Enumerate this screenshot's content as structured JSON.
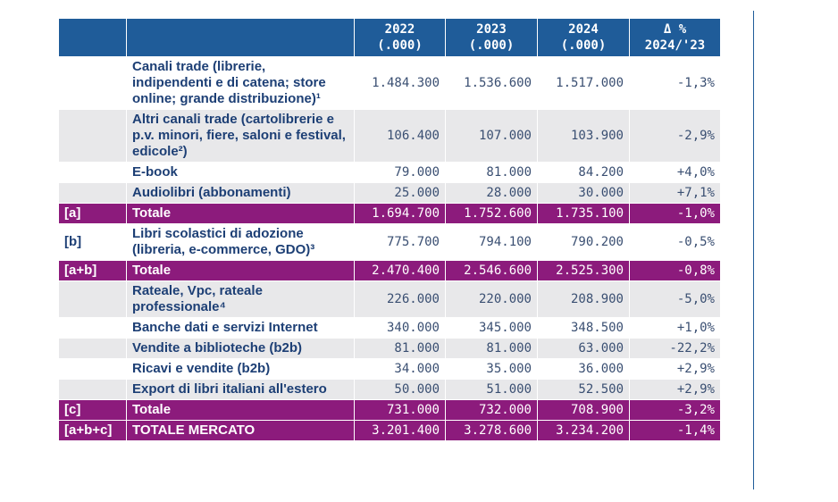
{
  "table": {
    "header": [
      {
        "line1": "2022",
        "line2": "(.000)"
      },
      {
        "line1": "2023",
        "line2": "(.000)"
      },
      {
        "line1": "2024",
        "line2": "(.000)"
      },
      {
        "line1": "Δ %",
        "line2": "2024/'23"
      }
    ],
    "rows": [
      {
        "label": "Canali trade (librerie, indipendenti e di catena; store online; grande distribuzione)¹",
        "values": [
          "1.484.300",
          "1.536.600",
          "1.517.000",
          "-1,3%"
        ],
        "style": "white"
      },
      {
        "label": "Altri canali trade (cartolibrerie e p.v. minori, fiere, saloni e festival, edicole²)",
        "values": [
          "106.400",
          "107.000",
          "103.900",
          "-2,9%"
        ],
        "style": "gray"
      },
      {
        "label": "E-book",
        "values": [
          "79.000",
          "81.000",
          "84.200",
          "+4,0%"
        ],
        "style": "white"
      },
      {
        "label": "Audiolibri (abbonamenti)",
        "values": [
          "25.000",
          "28.000",
          "30.000",
          "+7,1%"
        ],
        "style": "gray"
      },
      {
        "code": "[a]",
        "label": "Totale",
        "values": [
          "1.694.700",
          "1.752.600",
          "1.735.100",
          "-1,0%"
        ],
        "style": "total"
      },
      {
        "code": "[b]",
        "label": "Libri scolastici di adozione (libreria, e-commerce, GDO)³",
        "values": [
          "775.700",
          "794.100",
          "790.200",
          "-0,5%"
        ],
        "style": "white"
      },
      {
        "code": "[a+b]",
        "label": "Totale",
        "values": [
          "2.470.400",
          "2.546.600",
          "2.525.300",
          "-0,8%"
        ],
        "style": "total"
      },
      {
        "label": "Rateale, Vpc, rateale professionale⁴",
        "values": [
          "226.000",
          "220.000",
          "208.900",
          "-5,0%"
        ],
        "style": "gray"
      },
      {
        "label": "Banche dati e servizi Internet",
        "values": [
          "340.000",
          "345.000",
          "348.500",
          "+1,0%"
        ],
        "style": "white"
      },
      {
        "label": "Vendite a biblioteche (b2b)",
        "values": [
          "81.000",
          "81.000",
          "63.000",
          "-22,2%"
        ],
        "style": "gray"
      },
      {
        "label": "Ricavi e vendite (b2b)",
        "values": [
          "34.000",
          "35.000",
          "36.000",
          "+2,9%"
        ],
        "style": "white"
      },
      {
        "label": "Export di libri italiani all'estero",
        "values": [
          "50.000",
          "51.000",
          "52.500",
          "+2,9%"
        ],
        "style": "gray"
      },
      {
        "code": "[c]",
        "label": "Totale",
        "values": [
          "731.000",
          "732.000",
          "708.900",
          "-3,2%"
        ],
        "style": "total"
      },
      {
        "code": "[a+b+c]",
        "label": "TOTALE MERCATO",
        "values": [
          "3.201.400",
          "3.278.600",
          "3.234.200",
          "-1,4%"
        ],
        "style": "total"
      }
    ]
  }
}
